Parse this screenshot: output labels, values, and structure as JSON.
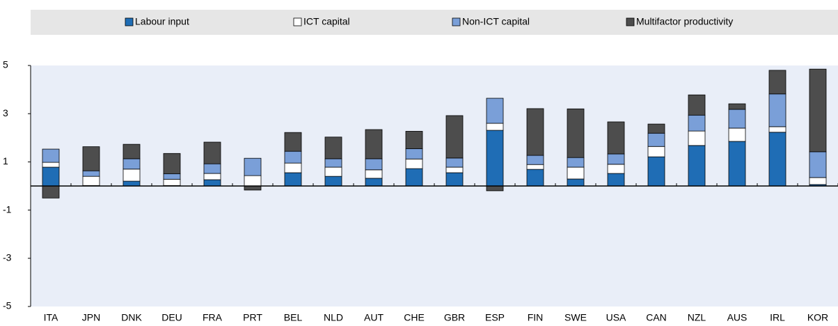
{
  "chart_data": {
    "type": "stacked_bar",
    "categories": [
      "ITA",
      "JPN",
      "DNK",
      "DEU",
      "FRA",
      "PRT",
      "BEL",
      "NLD",
      "AUT",
      "CHE",
      "GBR",
      "ESP",
      "FIN",
      "SWE",
      "USA",
      "CAN",
      "NZL",
      "AUS",
      "IRL",
      "KOR"
    ],
    "series": [
      {
        "name": "Labour input",
        "color": "#1f6db5",
        "values": [
          0.78,
          0.02,
          0.2,
          0.02,
          0.26,
          0,
          0.55,
          0.4,
          0.32,
          0.72,
          0.55,
          2.31,
          0.69,
          0.29,
          0.52,
          1.21,
          1.68,
          1.85,
          2.23,
          0.06
        ]
      },
      {
        "name": "ICT capital",
        "color": "#ffffff",
        "values": [
          0.2,
          0.38,
          0.5,
          0.26,
          0.26,
          0.43,
          0.4,
          0.38,
          0.35,
          0.4,
          0.23,
          0.29,
          0.2,
          0.49,
          0.38,
          0.43,
          0.6,
          0.55,
          0.23,
          0.29
        ]
      },
      {
        "name": "Non-ICT capital",
        "color": "#7a9fd8",
        "values": [
          0.55,
          0.23,
          0.43,
          0.23,
          0.4,
          0.72,
          0.49,
          0.35,
          0.46,
          0.43,
          0.38,
          1.04,
          0.38,
          0.4,
          0.43,
          0.55,
          0.66,
          0.78,
          1.36,
          1.07
        ]
      },
      {
        "name": "Multifactor productivity",
        "color": "#4d4d4d",
        "values": [
          -0.5,
          1.0,
          0.6,
          0.84,
          0.9,
          -0.17,
          0.78,
          0.9,
          1.21,
          0.72,
          1.76,
          -0.2,
          1.94,
          2.02,
          1.33,
          0.38,
          0.84,
          0.23,
          0.98,
          3.43
        ]
      }
    ],
    "ylim": [
      -5,
      5
    ],
    "yticks": [
      -5,
      -3,
      -1,
      1,
      3,
      5
    ],
    "legend": "top"
  }
}
